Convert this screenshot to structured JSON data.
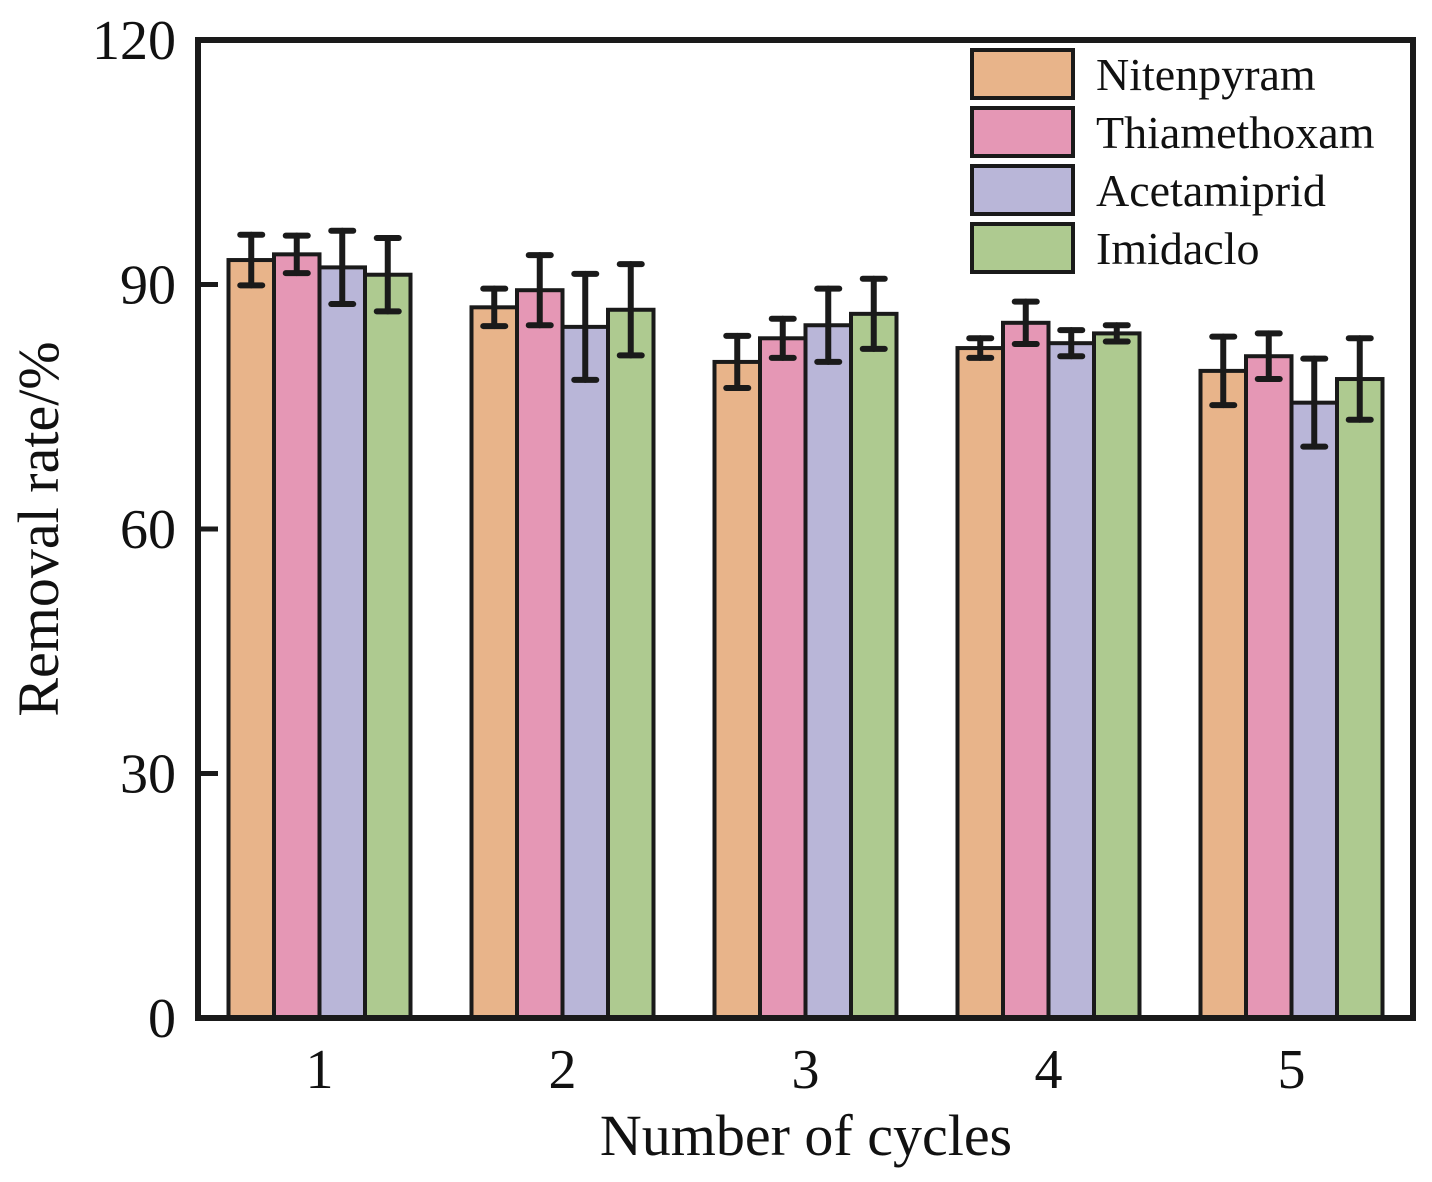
{
  "chart_data": {
    "type": "bar",
    "title": "",
    "xlabel": "Number of cycles",
    "ylabel": "Removal rate/%",
    "categories": [
      "1",
      "2",
      "3",
      "4",
      "5"
    ],
    "ylim": [
      0,
      120
    ],
    "yticks": [
      0,
      30,
      60,
      90,
      120
    ],
    "grid": false,
    "legend_position": "top-right",
    "series": [
      {
        "name": "Nitenpyram",
        "color": "#E8B48A",
        "values": [
          93.0,
          87.2,
          80.5,
          82.2,
          79.4
        ],
        "errors": [
          3.1,
          2.3,
          3.2,
          1.2,
          4.2
        ]
      },
      {
        "name": "Thiamethoxam",
        "color": "#E597B5",
        "values": [
          93.7,
          89.3,
          83.4,
          85.3,
          81.2
        ],
        "errors": [
          2.3,
          4.3,
          2.4,
          2.6,
          2.8
        ]
      },
      {
        "name": "Acetamiprid",
        "color": "#B9B6D8",
        "values": [
          92.1,
          84.8,
          85.0,
          82.8,
          75.5
        ],
        "errors": [
          4.5,
          6.5,
          4.5,
          1.6,
          5.4
        ]
      },
      {
        "name": "Imidaclo",
        "color": "#AECA90",
        "values": [
          91.2,
          86.9,
          86.4,
          84.0,
          78.4
        ],
        "errors": [
          4.5,
          5.6,
          4.3,
          1.0,
          5.0
        ]
      }
    ]
  }
}
